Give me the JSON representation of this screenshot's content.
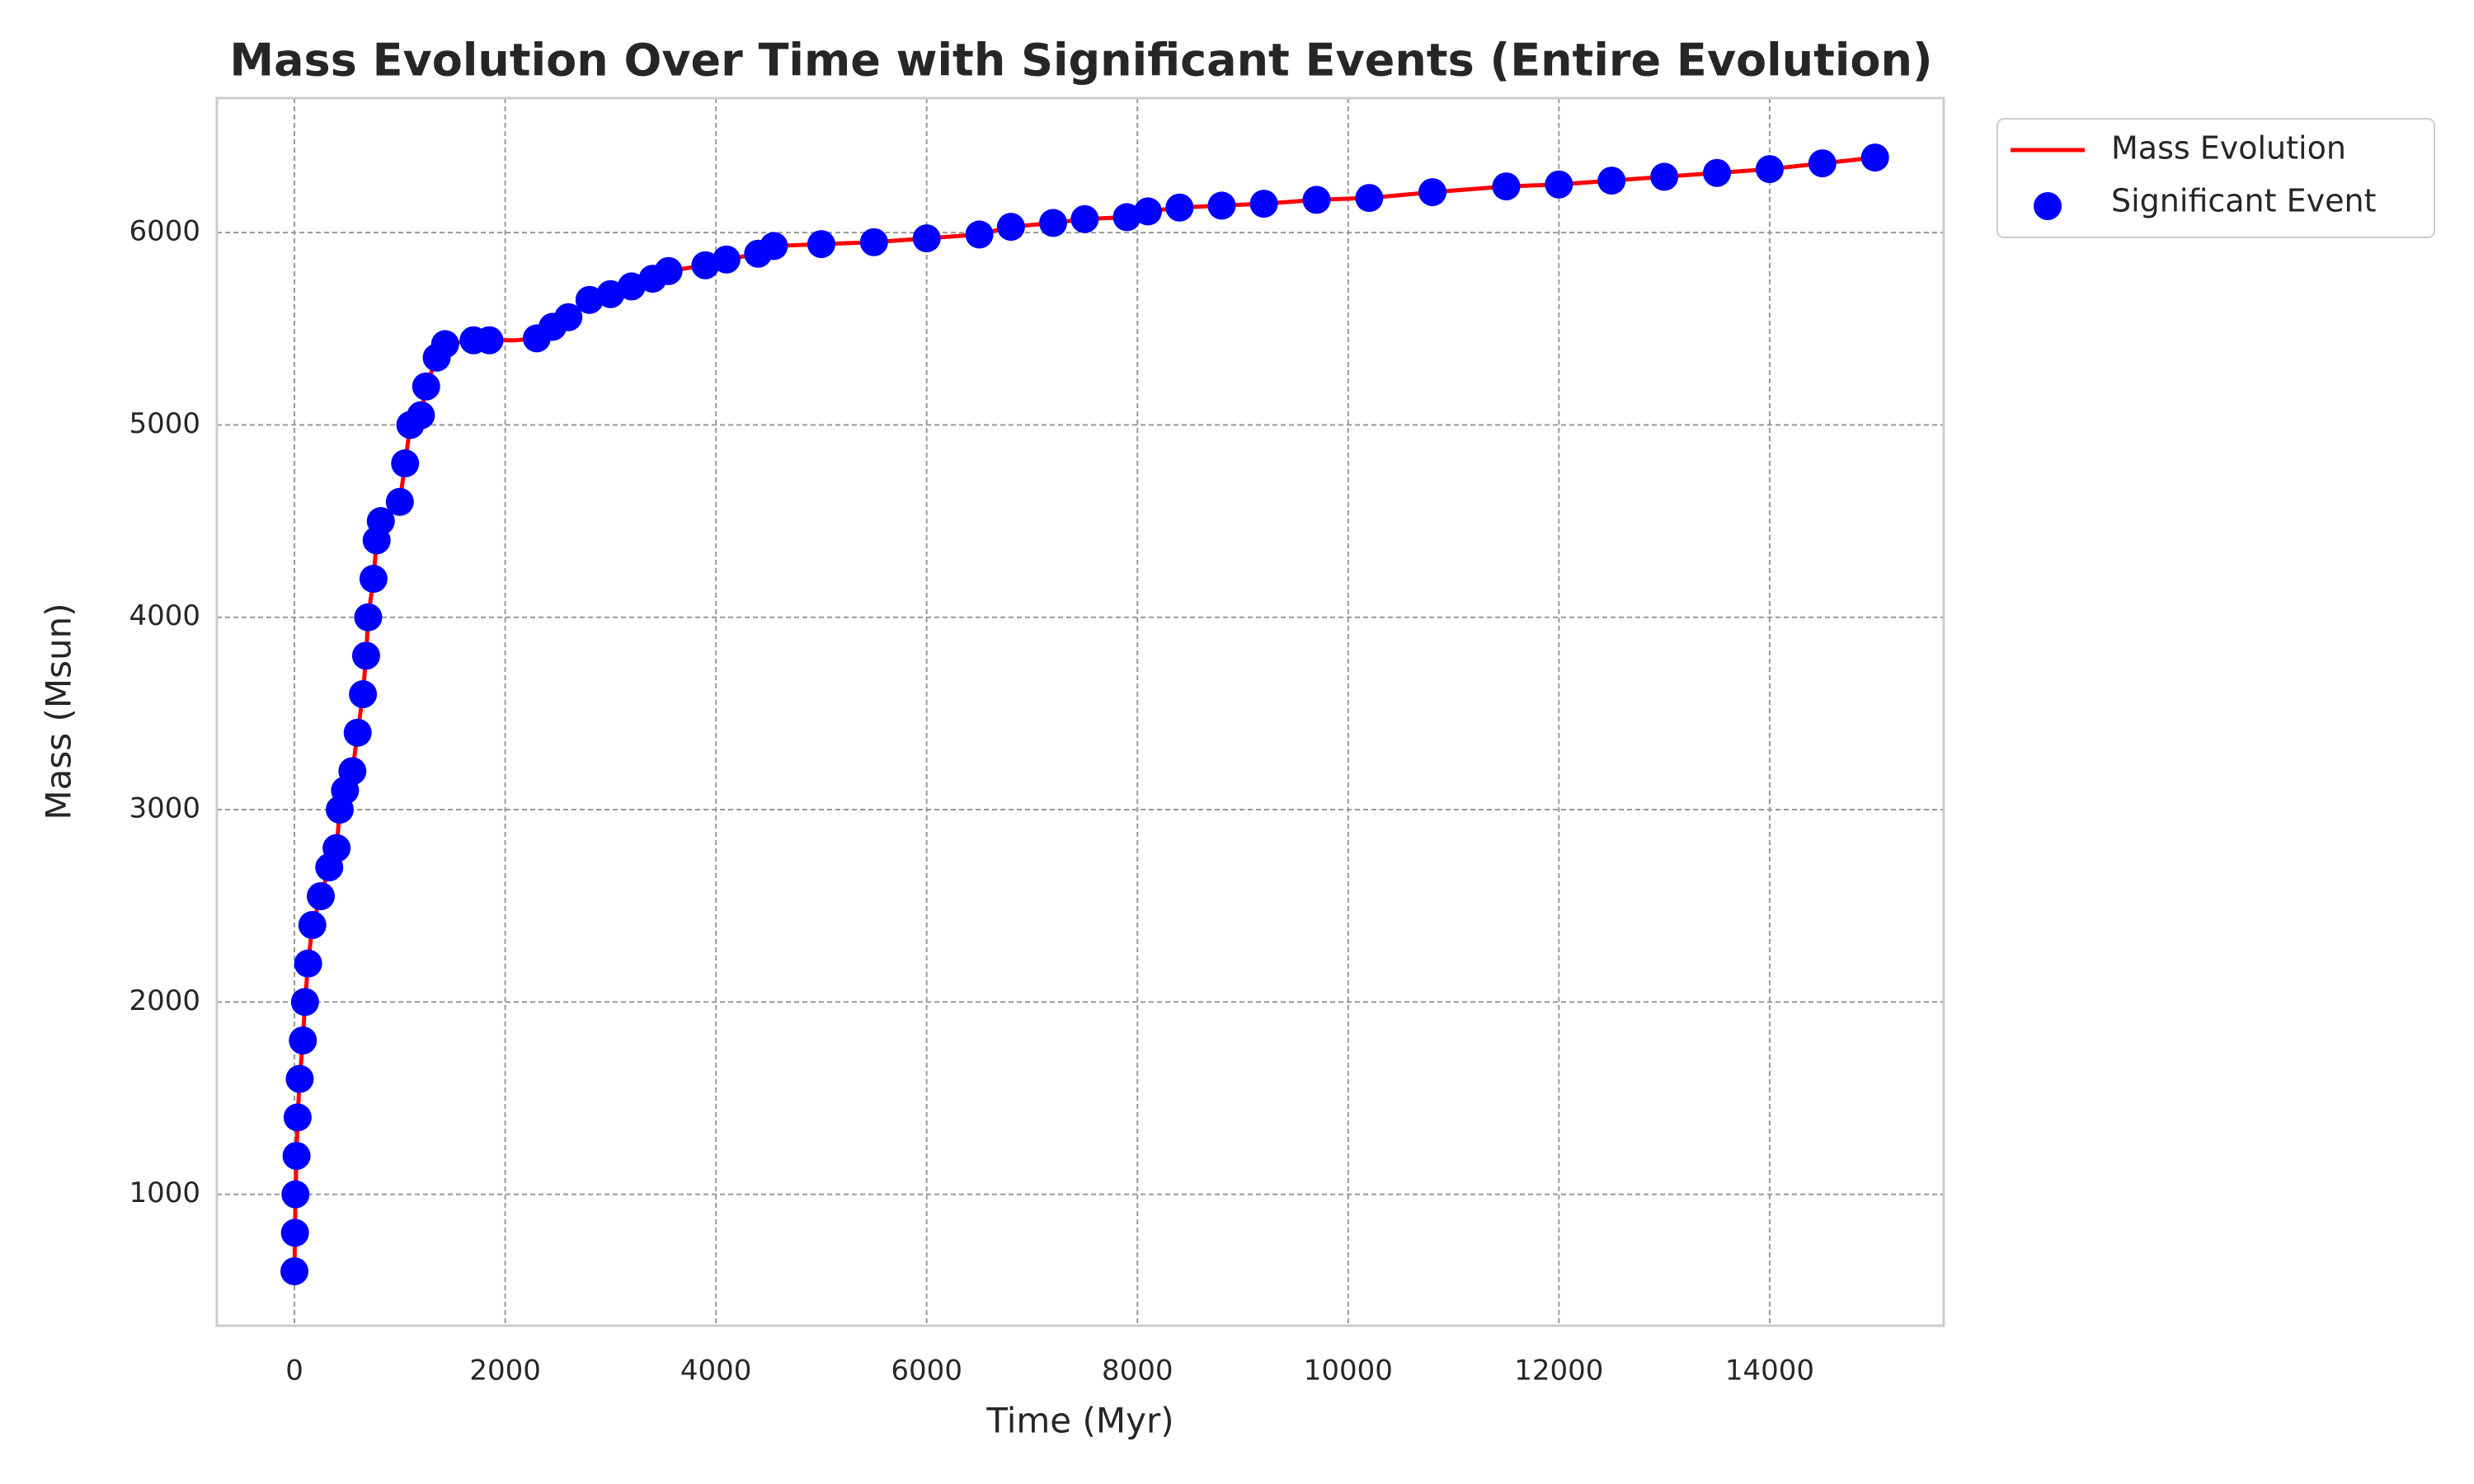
{
  "chart_data": {
    "type": "line",
    "title": "Mass Evolution Over Time with Significant Events (Entire Evolution)",
    "x_label": "Time (Myr)",
    "y_label": "Mass (Msun)",
    "xlim": [
      -736,
      15652
    ],
    "ylim": [
      317,
      6699
    ],
    "xticks": [
      0,
      2000,
      4000,
      6000,
      8000,
      10000,
      12000,
      14000
    ],
    "yticks": [
      1000,
      2000,
      3000,
      4000,
      5000,
      6000
    ],
    "grid": true,
    "legend": "outside upper right",
    "series": [
      {
        "name": "Mass Evolution",
        "type": "line",
        "color": "#ff0000",
        "x": [
          0,
          5,
          10,
          20,
          30,
          50,
          80,
          100,
          130,
          170,
          250,
          330,
          400,
          430,
          480,
          550,
          600,
          650,
          680,
          700,
          750,
          780,
          820,
          1000,
          1050,
          1100,
          1200,
          1250,
          1350,
          1430,
          1700,
          1850,
          2100,
          2300,
          2450,
          2600,
          2800,
          3000,
          3200,
          3400,
          3550,
          3900,
          4100,
          4400,
          4550,
          5000,
          5500,
          6000,
          6500,
          6800,
          7200,
          7500,
          7900,
          8100,
          8400,
          8800,
          9200,
          9700,
          10200,
          10800,
          11500,
          12000,
          12500,
          13000,
          13500,
          14000,
          14500,
          15000
        ],
        "values": [
          600,
          800,
          1000,
          1200,
          1400,
          1600,
          1800,
          2000,
          2200,
          2400,
          2550,
          2700,
          2800,
          3000,
          3100,
          3200,
          3400,
          3600,
          3800,
          4000,
          4200,
          4400,
          4500,
          4600,
          4800,
          5000,
          5050,
          5200,
          5350,
          5420,
          5440,
          5440,
          5440,
          5450,
          5510,
          5560,
          5650,
          5680,
          5720,
          5760,
          5800,
          5830,
          5860,
          5890,
          5930,
          5940,
          5950,
          5970,
          5990,
          6030,
          6050,
          6070,
          6080,
          6110,
          6130,
          6140,
          6150,
          6170,
          6180,
          6210,
          6240,
          6250,
          6270,
          6290,
          6310,
          6330,
          6360,
          6390
        ]
      },
      {
        "name": "Significant Event",
        "type": "scatter",
        "color": "#0000ff",
        "x": [
          0,
          5,
          10,
          20,
          30,
          50,
          80,
          100,
          130,
          170,
          250,
          330,
          400,
          430,
          480,
          550,
          600,
          650,
          680,
          700,
          750,
          780,
          820,
          1000,
          1050,
          1100,
          1200,
          1250,
          1350,
          1430,
          1700,
          1850,
          2300,
          2450,
          2600,
          2800,
          3000,
          3200,
          3400,
          3550,
          3900,
          4100,
          4400,
          4550,
          5000,
          5500,
          6000,
          6500,
          6800,
          7200,
          7500,
          7900,
          8100,
          8400,
          8800,
          9200,
          9700,
          10200,
          10800,
          11500,
          12000,
          12500,
          13000,
          13500,
          14000,
          14500,
          15000
        ],
        "values": [
          600,
          800,
          1000,
          1200,
          1400,
          1600,
          1800,
          2000,
          2200,
          2400,
          2550,
          2700,
          2800,
          3000,
          3100,
          3200,
          3400,
          3600,
          3800,
          4000,
          4200,
          4400,
          4500,
          4600,
          4800,
          5000,
          5050,
          5200,
          5350,
          5420,
          5440,
          5440,
          5450,
          5510,
          5560,
          5650,
          5680,
          5720,
          5760,
          5800,
          5830,
          5860,
          5890,
          5930,
          5940,
          5950,
          5970,
          5990,
          6030,
          6050,
          6070,
          6080,
          6110,
          6130,
          6140,
          6150,
          6170,
          6180,
          6210,
          6240,
          6250,
          6270,
          6290,
          6310,
          6330,
          6360,
          6390
        ]
      }
    ]
  }
}
